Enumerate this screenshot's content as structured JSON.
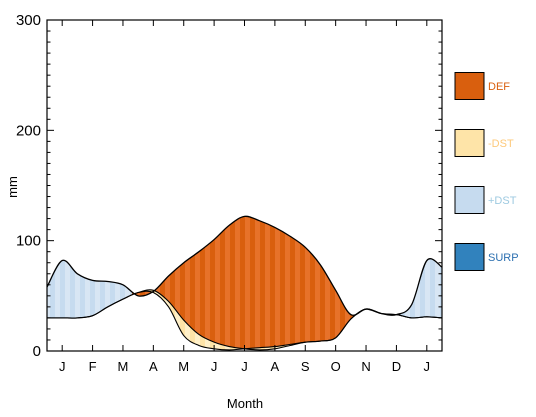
{
  "chart_data": {
    "type": "area",
    "xlabel": "Month",
    "ylabel": "mm",
    "ylim": [
      0,
      300
    ],
    "yticks": [
      0,
      100,
      200,
      300
    ],
    "months": [
      "J",
      "F",
      "M",
      "A",
      "M",
      "J",
      "J",
      "A",
      "S",
      "O",
      "N",
      "D",
      "J"
    ],
    "x": [
      0,
      0.5,
      1,
      1.5,
      2,
      2.5,
      3,
      3.5,
      4,
      4.5,
      5,
      5.5,
      6,
      6.5,
      7,
      7.5,
      8,
      8.5,
      9,
      9.5,
      10,
      10.5,
      11,
      11.5,
      12,
      12.5,
      13
    ],
    "upper_curve": [
      58,
      82,
      70,
      64,
      63,
      60,
      50,
      54,
      68,
      80,
      90,
      101,
      114,
      122,
      118,
      112,
      104,
      94,
      78,
      55,
      33,
      38,
      34,
      33,
      42,
      82,
      76
    ],
    "middle_curve": [
      30,
      30,
      30,
      32,
      40,
      47,
      53,
      55,
      45,
      28,
      15,
      8,
      4,
      2,
      1,
      2,
      5,
      8,
      9,
      12,
      29,
      38,
      34,
      33,
      30,
      31,
      30
    ],
    "lower_curve": [
      30,
      30,
      30,
      32,
      40,
      47,
      53,
      53,
      40,
      14,
      5,
      2,
      1,
      2,
      3,
      4,
      6,
      8,
      9,
      12,
      29,
      38,
      34,
      33,
      30,
      31,
      30
    ],
    "legend_placement": "right",
    "legend": [
      {
        "label": "DEF",
        "color": "#d95f0e",
        "text_color": "#d95f0e"
      },
      {
        "label": "-DST",
        "color": "#fee4a8",
        "text_color": "#fdc97a"
      },
      {
        "label": "+DST",
        "color": "#c6dbef",
        "text_color": "#9ecae1"
      },
      {
        "label": "SURP",
        "color": "#3182bd",
        "text_color": "#2b6fb0"
      }
    ],
    "colors": {
      "def": "#d95f0e",
      "def_stripe": "#e7722a",
      "minus_dst": "#fee4a8",
      "minus_dst_stripe": "#fff0c9",
      "plus_dst": "#c6dbef",
      "plus_dst_stripe": "#d8e6f4",
      "surp": "#3182bd",
      "line": "#000000"
    }
  }
}
